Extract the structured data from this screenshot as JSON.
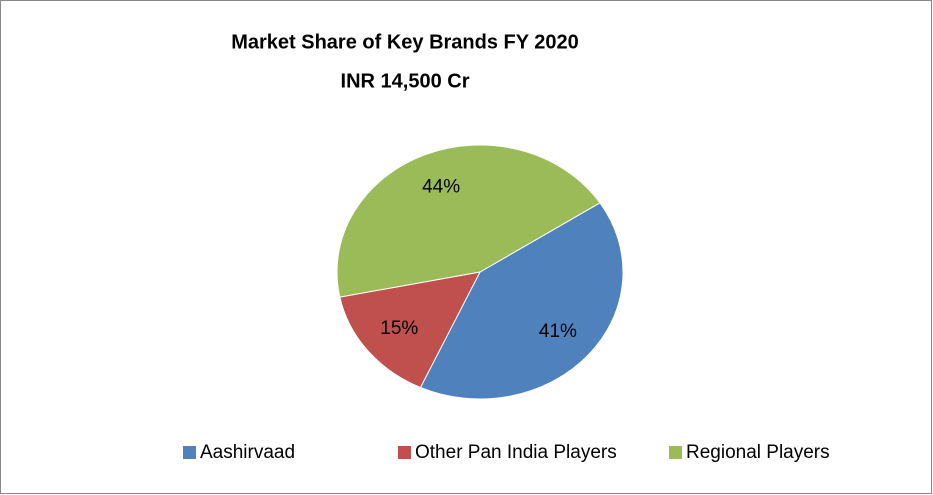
{
  "chart_data": {
    "type": "pie",
    "title": "Market Share of Key Brands FY 2020",
    "subtitle": "INR 14,500 Cr",
    "categories": [
      "Aashirvaad",
      "Other Pan India Players",
      "Regional Players"
    ],
    "values": [
      41,
      15,
      44
    ],
    "value_labels": [
      "41%",
      "15%",
      "44%"
    ],
    "colors": [
      "#4f81bd",
      "#c0504d",
      "#9bbb59"
    ],
    "legend": "bottom"
  }
}
